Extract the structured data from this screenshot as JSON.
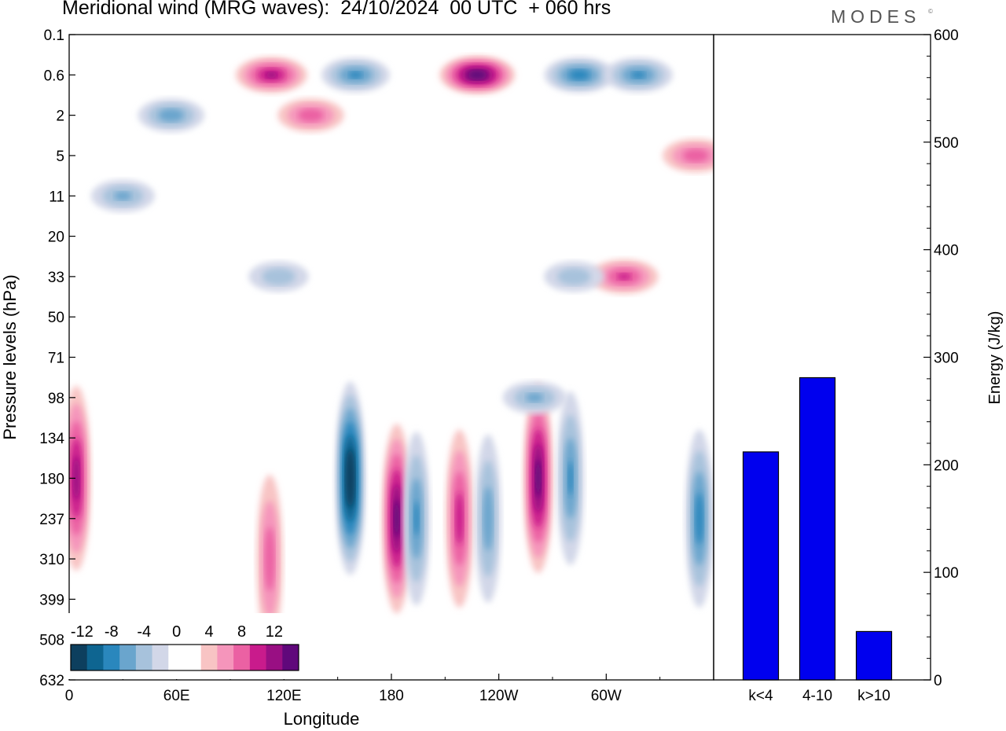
{
  "title": "Meridional wind (MRG waves):  24/10/2024  00 UTC  + 060 hrs",
  "brand": "MODES",
  "brand_mark": "©",
  "colors": {
    "negative": [
      "#0d3f5e",
      "#0e6591",
      "#2a87bd",
      "#6aa5cd",
      "#a7c2dc",
      "#d2d7e8"
    ],
    "neutral": "#ffffff",
    "positive": [
      "#f8c4c4",
      "#f595bb",
      "#eb61a3",
      "#c91b8c",
      "#990f83",
      "#60087b"
    ],
    "bar_fill": "#0000ee",
    "bar_stroke": "#000000"
  },
  "chart_data": [
    {
      "type": "heatmap",
      "title": "Meridional wind (MRG waves):  24/10/2024  00 UTC  + 060 hrs",
      "xlabel": "Longitude",
      "ylabel": "Pressure levels (hPa)",
      "x_ticks": [
        "0",
        "60E",
        "120E",
        "180",
        "120W",
        "60W"
      ],
      "x_tick_degrees_east": [
        0,
        60,
        120,
        180,
        240,
        300
      ],
      "xlim_degrees_east": [
        0,
        360
      ],
      "y_ticks": [
        "0.1",
        "0.6",
        "2",
        "5",
        "11",
        "20",
        "33",
        "50",
        "71",
        "98",
        "134",
        "180",
        "237",
        "310",
        "399",
        "508",
        "632"
      ],
      "colorbar": {
        "labels": [
          "-12",
          "-8",
          "-4",
          "0",
          "4",
          "8",
          "12"
        ],
        "levels": [
          -14,
          -12,
          -10,
          -8,
          -6,
          -4,
          -2,
          2,
          4,
          6,
          8,
          10,
          12,
          14
        ]
      },
      "features": [
        {
          "lon": 157,
          "level": "180",
          "value": -15
        },
        {
          "lon": 183,
          "level": "237",
          "value": 13
        },
        {
          "lon": 194,
          "level": "237",
          "value": -8
        },
        {
          "lon": 218,
          "level": "237",
          "value": 9
        },
        {
          "lon": 234,
          "level": "237",
          "value": -7
        },
        {
          "lon": 262,
          "level": "180",
          "value": 13
        },
        {
          "lon": 280,
          "level": "180",
          "value": -8
        },
        {
          "lon": 4,
          "level": "180",
          "value": 11
        },
        {
          "lon": 352,
          "level": "237",
          "value": -9
        },
        {
          "lon": 112,
          "level": "310",
          "value": 7
        },
        {
          "lon": 228,
          "level": "0.6",
          "value": 14
        },
        {
          "lon": 160,
          "level": "0.6",
          "value": -8
        },
        {
          "lon": 285,
          "level": "0.6",
          "value": -9
        },
        {
          "lon": 318,
          "level": "0.6",
          "value": -8
        },
        {
          "lon": 113,
          "level": "0.6",
          "value": 10
        },
        {
          "lon": 135,
          "level": "2",
          "value": 7
        },
        {
          "lon": 350,
          "level": "5",
          "value": 7
        },
        {
          "lon": 30,
          "level": "11",
          "value": -6
        },
        {
          "lon": 57,
          "level": "2",
          "value": -7
        },
        {
          "lon": 117,
          "level": "33",
          "value": -5
        },
        {
          "lon": 310,
          "level": "33",
          "value": 8
        },
        {
          "lon": 260,
          "level": "98",
          "value": -6
        },
        {
          "lon": 282,
          "level": "33",
          "value": -5
        }
      ]
    },
    {
      "type": "bar",
      "ylabel": "Energy (J/kg)",
      "categories": [
        "k<4",
        "4-10",
        "k>10"
      ],
      "values": [
        212,
        281,
        45
      ],
      "ylim": [
        0,
        600
      ],
      "y_ticks": [
        0,
        100,
        200,
        300,
        400,
        500,
        600
      ]
    }
  ]
}
